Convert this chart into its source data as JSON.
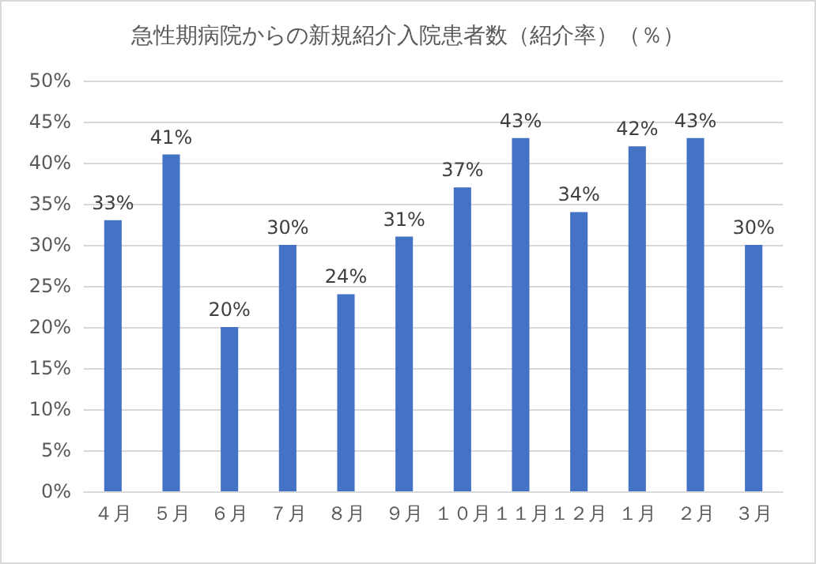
{
  "chart_data": {
    "type": "bar",
    "title": "急性期病院からの新規紹介入院患者数（紹介率）（％）",
    "categories": [
      "４月",
      "５月",
      "６月",
      "７月",
      "８月",
      "９月",
      "１０月",
      "１１月",
      "１２月",
      "１月",
      "２月",
      "３月"
    ],
    "values": [
      33,
      41,
      20,
      30,
      24,
      31,
      37,
      43,
      34,
      42,
      43,
      30
    ],
    "value_labels": [
      "33%",
      "41%",
      "20%",
      "30%",
      "24%",
      "31%",
      "37%",
      "43%",
      "34%",
      "42%",
      "43%",
      "30%"
    ],
    "color": "#4472c4",
    "ylim": [
      0,
      50
    ],
    "yticks": [
      {
        "value": 0,
        "label": "0%"
      },
      {
        "value": 5,
        "label": "5%"
      },
      {
        "value": 10,
        "label": "10%"
      },
      {
        "value": 15,
        "label": "15%"
      },
      {
        "value": 20,
        "label": "20%"
      },
      {
        "value": 25,
        "label": "25%"
      },
      {
        "value": 30,
        "label": "30%"
      },
      {
        "value": 35,
        "label": "35%"
      },
      {
        "value": 40,
        "label": "40%"
      },
      {
        "value": 45,
        "label": "45%"
      },
      {
        "value": 50,
        "label": "50%"
      }
    ],
    "grid": "y"
  }
}
